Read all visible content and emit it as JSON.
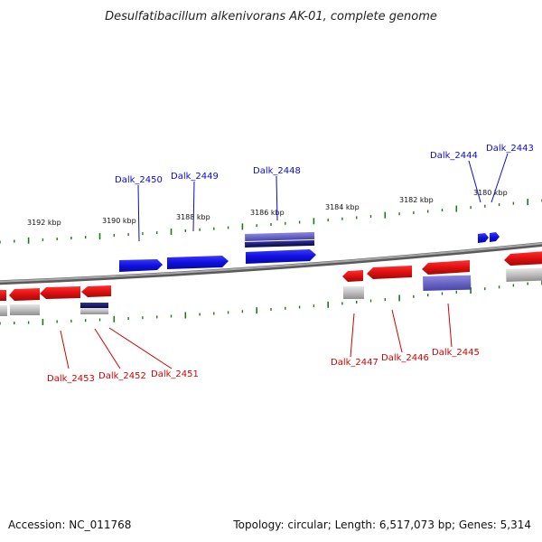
{
  "title": "Desulfatibacillum alkenivorans AK-01, complete genome",
  "footer": {
    "accession": "Accession: NC_011768",
    "topology": "Topology: circular; Length: 6,517,073 bp; Genes: 5,314"
  },
  "colors": {
    "forward_gene": "#1010e0",
    "reverse_gene": "#e01010",
    "backbone": "#8a8a8a",
    "tick": "#1a7a1a",
    "forward_label": "#0a0ad0",
    "reverse_label": "#d10000"
  },
  "scale_labels": [
    "3192 kbp",
    "3190 kbp",
    "3188 kbp",
    "3186 kbp",
    "3184 kbp",
    "3182 kbp",
    "3180 kbp"
  ],
  "forward_genes": [
    "Dalk_2450",
    "Dalk_2449",
    "Dalk_2448",
    "Dalk_2444",
    "Dalk_2443"
  ],
  "reverse_genes": [
    "Dalk_2453",
    "Dalk_2452",
    "Dalk_2451",
    "Dalk_2447",
    "Dalk_2446",
    "Dalk_2445"
  ]
}
